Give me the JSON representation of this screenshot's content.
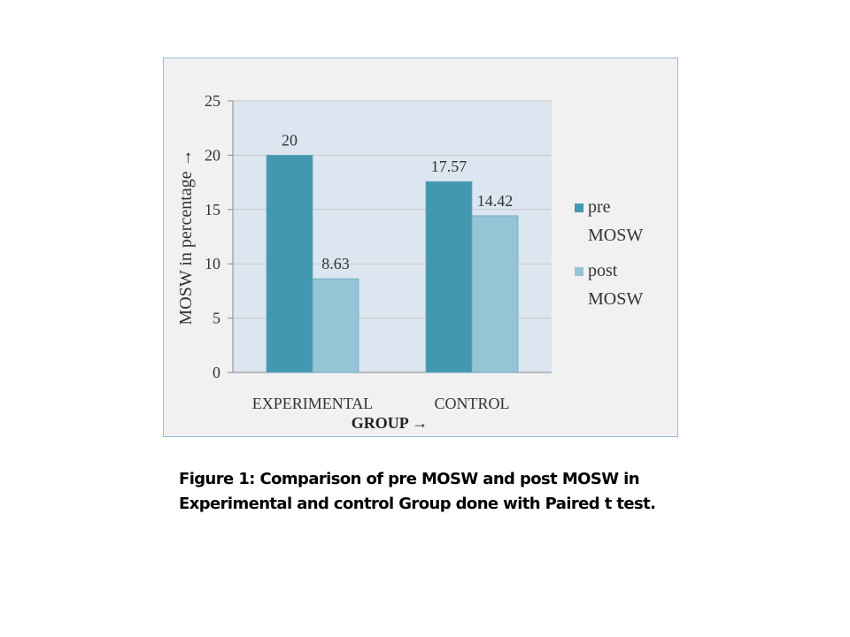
{
  "chart_data": {
    "type": "bar",
    "categories": [
      "EXPERIMENTAL",
      "CONTROL"
    ],
    "series": [
      {
        "name": "pre MOSW",
        "values": [
          20,
          17.57
        ],
        "labels": [
          "20",
          "17.57"
        ],
        "color": "#4198b0"
      },
      {
        "name": "post MOSW",
        "values": [
          8.63,
          14.42
        ],
        "labels": [
          "8.63",
          "14.42"
        ],
        "color": "#95c4d7"
      }
    ],
    "title": "",
    "xlabel": "GROUP →",
    "ylabel": "MOSW in percentage →",
    "ylim": [
      0,
      25
    ],
    "yticks": [
      0,
      5,
      10,
      15,
      20,
      25
    ],
    "grid": true,
    "legend": "right",
    "legend_lines": [
      [
        "pre",
        "MOSW"
      ],
      [
        "post",
        "MOSW"
      ]
    ],
    "plot_background": "#dce6f0",
    "frame_background": "#f1f1f1"
  },
  "caption": {
    "line1": "Figure 1: Comparison of pre MOSW and post MOSW in",
    "line2": "Experimental and control Group done with Paired t test."
  }
}
